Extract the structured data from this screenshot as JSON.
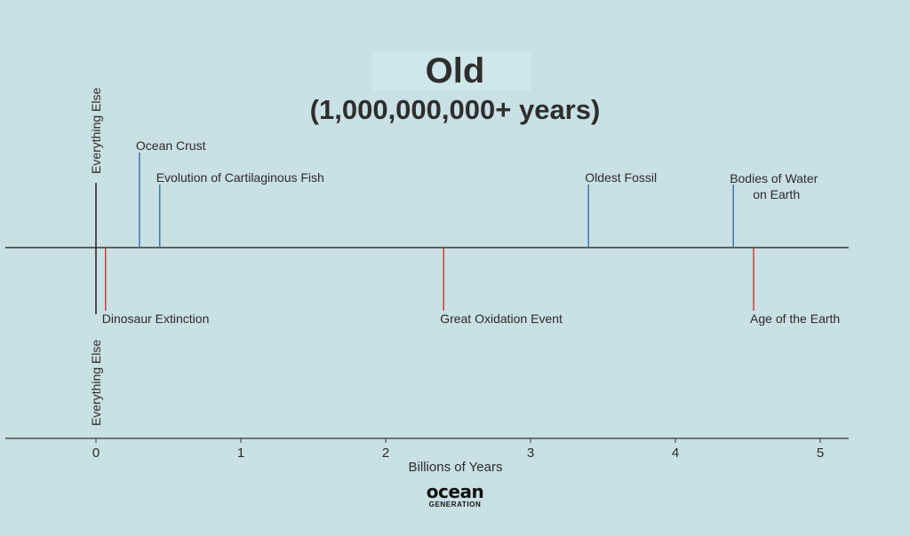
{
  "title": "Old",
  "subtitle": "(1,000,000,000+ years)",
  "logo": {
    "top": "ocean",
    "bottom": "GENERATION"
  },
  "colors": {
    "above": "#3b78a8",
    "below": "#d33a3a",
    "reference": "#2b2b2b",
    "axis": "#333333",
    "background": "#c9e0e4"
  },
  "chart_data": {
    "type": "timeline",
    "xlabel": "Billions of Years",
    "xlim": [
      -0.62,
      5.2
    ],
    "ticks": [
      0,
      1,
      2,
      3,
      4,
      5
    ],
    "reference": {
      "label": "Everything Else",
      "x": 0
    },
    "events": [
      {
        "label": "Ocean Crust",
        "x": 0.3,
        "side": "above",
        "level": 2
      },
      {
        "label": "Evolution of Cartilaginous Fish",
        "x": 0.44,
        "side": "above",
        "level": 1
      },
      {
        "label": "Oldest Fossil",
        "x": 3.4,
        "side": "above",
        "level": 1
      },
      {
        "label": "Bodies of Water on Earth",
        "lines": [
          "Bodies of Water",
          "on Earth"
        ],
        "x": 4.4,
        "side": "above",
        "level": 1
      },
      {
        "label": "Dinosaur Extinction",
        "x": 0.066,
        "side": "below",
        "level": 1
      },
      {
        "label": "Great Oxidation Event",
        "x": 2.4,
        "side": "below",
        "level": 1
      },
      {
        "label": "Age of the Earth",
        "x": 4.54,
        "side": "below",
        "level": 1
      }
    ]
  }
}
